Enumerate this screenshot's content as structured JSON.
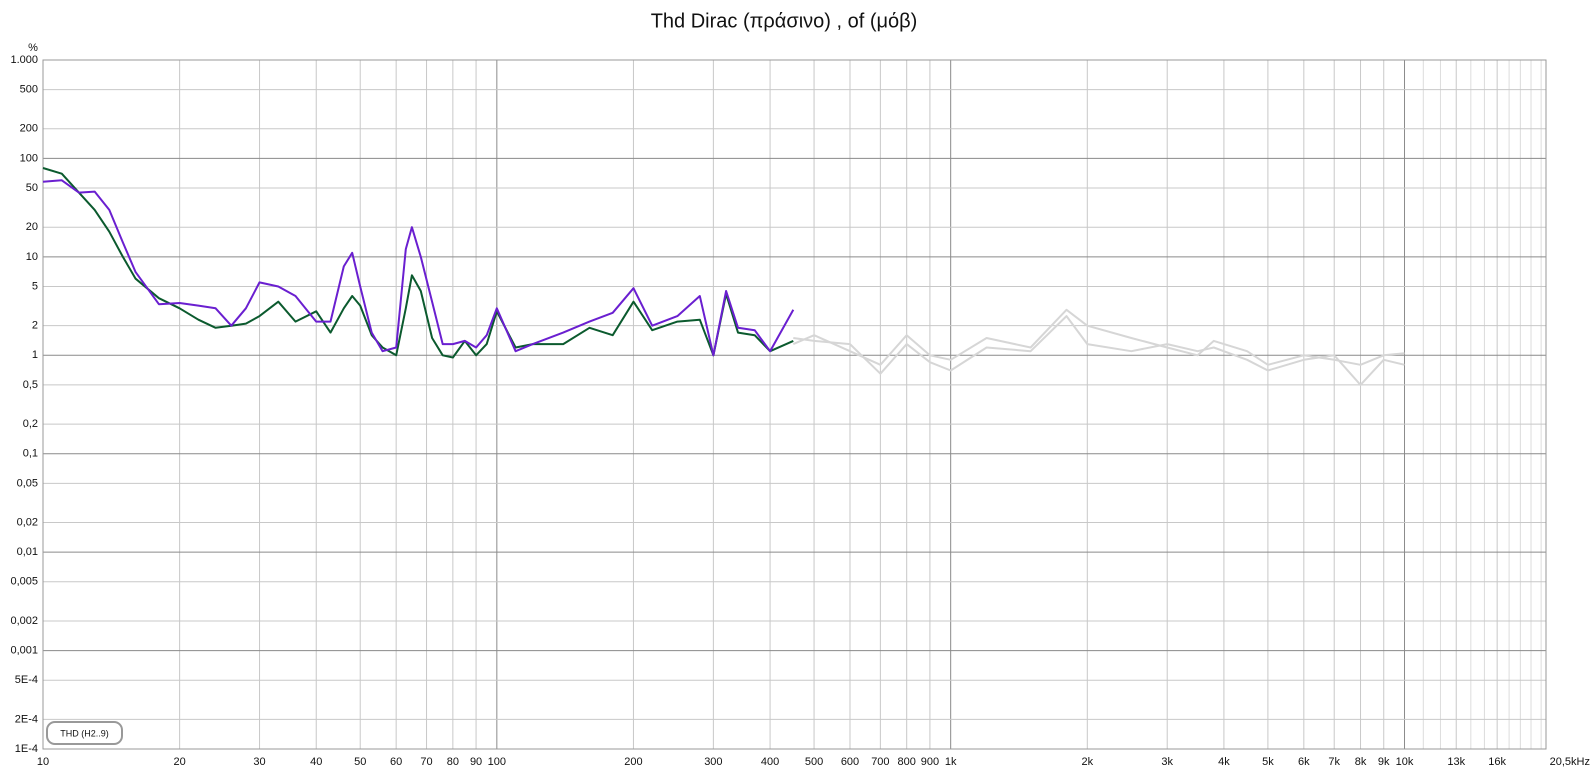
{
  "chart_data": {
    "type": "line",
    "title": "Thd Dirac (πράσινο) , of (μόβ)",
    "y_label": "%",
    "legend_label": "THD (H2..9)",
    "x_scale": "log",
    "y_scale": "log",
    "grid": true,
    "xlim": [
      10,
      20500
    ],
    "ylim": [
      0.0001,
      1000
    ],
    "xticks": [
      10,
      20,
      30,
      40,
      50,
      60,
      70,
      80,
      90,
      100,
      200,
      300,
      400,
      500,
      600,
      700,
      800,
      900,
      {
        "value": 1000,
        "label": "1k"
      },
      {
        "value": 2000,
        "label": "2k"
      },
      {
        "value": 3000,
        "label": "3k"
      },
      {
        "value": 4000,
        "label": "4k"
      },
      {
        "value": 5000,
        "label": "5k"
      },
      {
        "value": 6000,
        "label": "6k"
      },
      {
        "value": 7000,
        "label": "7k"
      },
      {
        "value": 8000,
        "label": "8k"
      },
      {
        "value": 9000,
        "label": "9k"
      },
      {
        "value": 10000,
        "label": "10k"
      },
      {
        "value": 13000,
        "label": "13k"
      },
      {
        "value": 16000,
        "label": "16k"
      },
      {
        "value": 20500,
        "label": "20,5kHz"
      }
    ],
    "xminor": [
      11000,
      12000,
      14000,
      15000,
      17000,
      18000,
      19000,
      20000
    ],
    "yticks": [
      {
        "value": 1000,
        "label": "1.000"
      },
      500,
      200,
      100,
      50,
      20,
      10,
      5,
      2,
      1,
      {
        "value": 0.5,
        "label": "0,5"
      },
      {
        "value": 0.2,
        "label": "0,2"
      },
      {
        "value": 0.1,
        "label": "0,1"
      },
      {
        "value": 0.05,
        "label": "0,05"
      },
      {
        "value": 0.02,
        "label": "0,02"
      },
      {
        "value": 0.01,
        "label": "0,01"
      },
      {
        "value": 0.005,
        "label": "0,005"
      },
      {
        "value": 0.002,
        "label": "0,002"
      },
      {
        "value": 0.001,
        "label": "0,001"
      },
      {
        "value": 0.0005,
        "label": "5E-4"
      },
      {
        "value": 0.0002,
        "label": "2E-4"
      },
      {
        "value": 0.0001,
        "label": "1E-4"
      }
    ],
    "x": [
      10,
      11,
      12,
      13,
      14,
      15,
      16,
      18,
      20,
      22,
      24,
      26,
      28,
      30,
      33,
      36,
      40,
      43,
      46,
      48,
      50,
      53,
      56,
      60,
      63,
      65,
      68,
      72,
      76,
      80,
      85,
      90,
      95,
      100,
      110,
      120,
      140,
      160,
      180,
      200,
      220,
      250,
      280,
      300,
      320,
      340,
      370,
      400,
      450,
      500,
      600,
      700,
      800,
      900,
      1000,
      1200,
      1500,
      1800,
      2000,
      2500,
      3000,
      3500,
      3800,
      4500,
      5000,
      6000,
      7000,
      8000,
      9000,
      10000
    ],
    "series": [
      {
        "color": "#d6d6d6",
        "values": [
          null,
          null,
          null,
          null,
          null,
          null,
          null,
          null,
          null,
          null,
          null,
          null,
          null,
          null,
          null,
          null,
          null,
          null,
          null,
          null,
          null,
          null,
          null,
          null,
          null,
          null,
          null,
          null,
          null,
          null,
          null,
          null,
          null,
          null,
          null,
          null,
          null,
          null,
          null,
          null,
          null,
          null,
          null,
          null,
          null,
          null,
          null,
          null,
          1.5,
          1.4,
          1.3,
          0.65,
          1.3,
          0.85,
          0.7,
          1.2,
          1.1,
          2.5,
          1.3,
          1.1,
          1.3,
          1.1,
          1.2,
          0.9,
          0.7,
          0.9,
          1,
          0.5,
          0.9,
          0.8
        ]
      },
      {
        "color": "#d6d6d6",
        "values": [
          null,
          null,
          null,
          null,
          null,
          null,
          null,
          null,
          null,
          null,
          null,
          null,
          null,
          null,
          null,
          null,
          null,
          null,
          null,
          null,
          null,
          null,
          null,
          null,
          null,
          null,
          null,
          null,
          null,
          null,
          null,
          null,
          null,
          null,
          null,
          null,
          null,
          null,
          null,
          null,
          null,
          null,
          null,
          null,
          null,
          null,
          null,
          null,
          1.3,
          1.6,
          1.1,
          0.8,
          1.6,
          1,
          0.9,
          1.5,
          1.2,
          2.9,
          2,
          1.5,
          1.2,
          1,
          1.4,
          1.1,
          0.8,
          1,
          0.9,
          0.8,
          1,
          1.05
        ]
      },
      {
        "color": "#0b5a2e",
        "values": [
          80,
          70,
          45,
          30,
          18,
          10,
          6,
          3.8,
          3,
          2.3,
          1.9,
          2,
          2.1,
          2.5,
          3.5,
          2.2,
          2.8,
          1.7,
          3,
          4,
          3.2,
          1.6,
          1.2,
          1,
          3,
          6.5,
          4.5,
          1.5,
          1,
          0.95,
          1.4,
          1,
          1.3,
          2.8,
          1.2,
          1.3,
          1.3,
          1.9,
          1.6,
          3.5,
          1.8,
          2.2,
          2.3,
          1,
          4.2,
          1.7,
          1.6,
          1.1,
          1.4,
          null,
          null,
          null,
          null,
          null,
          null,
          null,
          null,
          null,
          null,
          null,
          null,
          null,
          null,
          null,
          null,
          null,
          null,
          null,
          null,
          null
        ]
      },
      {
        "color": "#6a1fd0",
        "values": [
          58,
          60,
          45,
          46,
          30,
          14,
          7,
          3.3,
          3.4,
          3.2,
          3,
          2,
          3,
          5.5,
          5,
          4,
          2.2,
          2.2,
          8,
          11,
          5,
          1.7,
          1.1,
          1.2,
          12,
          20,
          10,
          3.5,
          1.3,
          1.3,
          1.4,
          1.2,
          1.6,
          3,
          1.1,
          1.3,
          1.7,
          2.2,
          2.7,
          4.8,
          2,
          2.5,
          4,
          1,
          4.5,
          1.9,
          1.8,
          1.1,
          2.9,
          null,
          null,
          null,
          null,
          null,
          null,
          null,
          null,
          null,
          null,
          null,
          null,
          null,
          null,
          null,
          null,
          null,
          null,
          null,
          null,
          null
        ]
      }
    ]
  }
}
